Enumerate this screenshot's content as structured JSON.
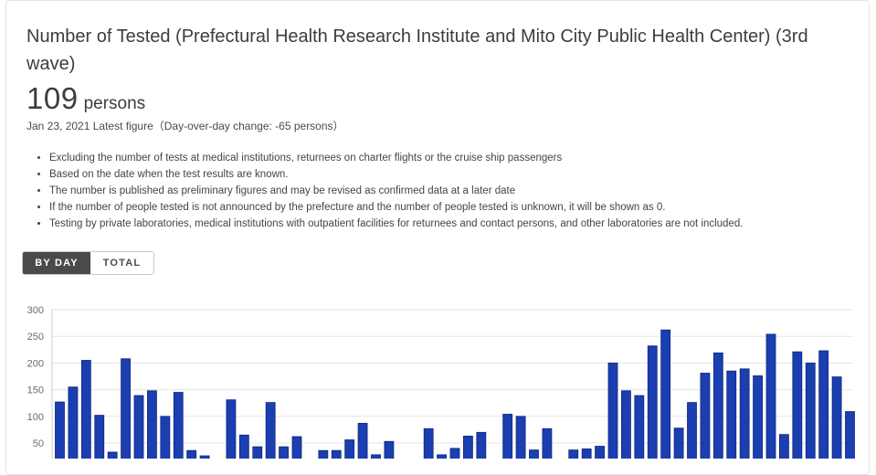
{
  "header": {
    "title": "Number of Tested (Prefectural Health Research Institute and Mito City Public Health Center) (3rd wave)",
    "latest_value": "109",
    "latest_unit": "persons",
    "latest_note": "Jan 23, 2021 Latest figure（Day-over-day change: -65 persons）"
  },
  "notes": [
    "Excluding the number of tests at medical institutions, returnees on charter flights or the cruise ship passengers",
    "Based on the date when the test results are known.",
    "The number is published as preliminary figures and may be revised as confirmed data at a later date",
    "If the number of people tested is not announced by the prefecture and the number of people tested is unknown, it will be shown as 0.",
    "Testing by private laboratories, medical institutions with outpatient facilities for returnees and contact persons, and other laboratories are not included."
  ],
  "toggle": {
    "by_day_label": "BY DAY",
    "total_label": "TOTAL",
    "active": "BY DAY"
  },
  "colors": {
    "bar_fill": "#1b3fb0",
    "bar_stroke": "#0c2680",
    "grid": "#e6e6e6",
    "axis": "#cccccc"
  },
  "chart_data": {
    "type": "bar",
    "title": "",
    "xlabel": "",
    "ylabel": "",
    "ylim": [
      0,
      300
    ],
    "yticks": [
      0,
      50,
      100,
      150,
      200,
      250,
      300
    ],
    "grid": true,
    "values": [
      127,
      155,
      205,
      102,
      33,
      208,
      139,
      148,
      100,
      145,
      36,
      26,
      0,
      131,
      65,
      43,
      126,
      43,
      62,
      0,
      36,
      36,
      56,
      87,
      28,
      53,
      0,
      0,
      77,
      28,
      40,
      63,
      70,
      0,
      104,
      100,
      37,
      77,
      0,
      37,
      39,
      44,
      200,
      148,
      139,
      232,
      262,
      78,
      126,
      181,
      219,
      185,
      189,
      176,
      254,
      66,
      221,
      200,
      223,
      174,
      109
    ]
  }
}
